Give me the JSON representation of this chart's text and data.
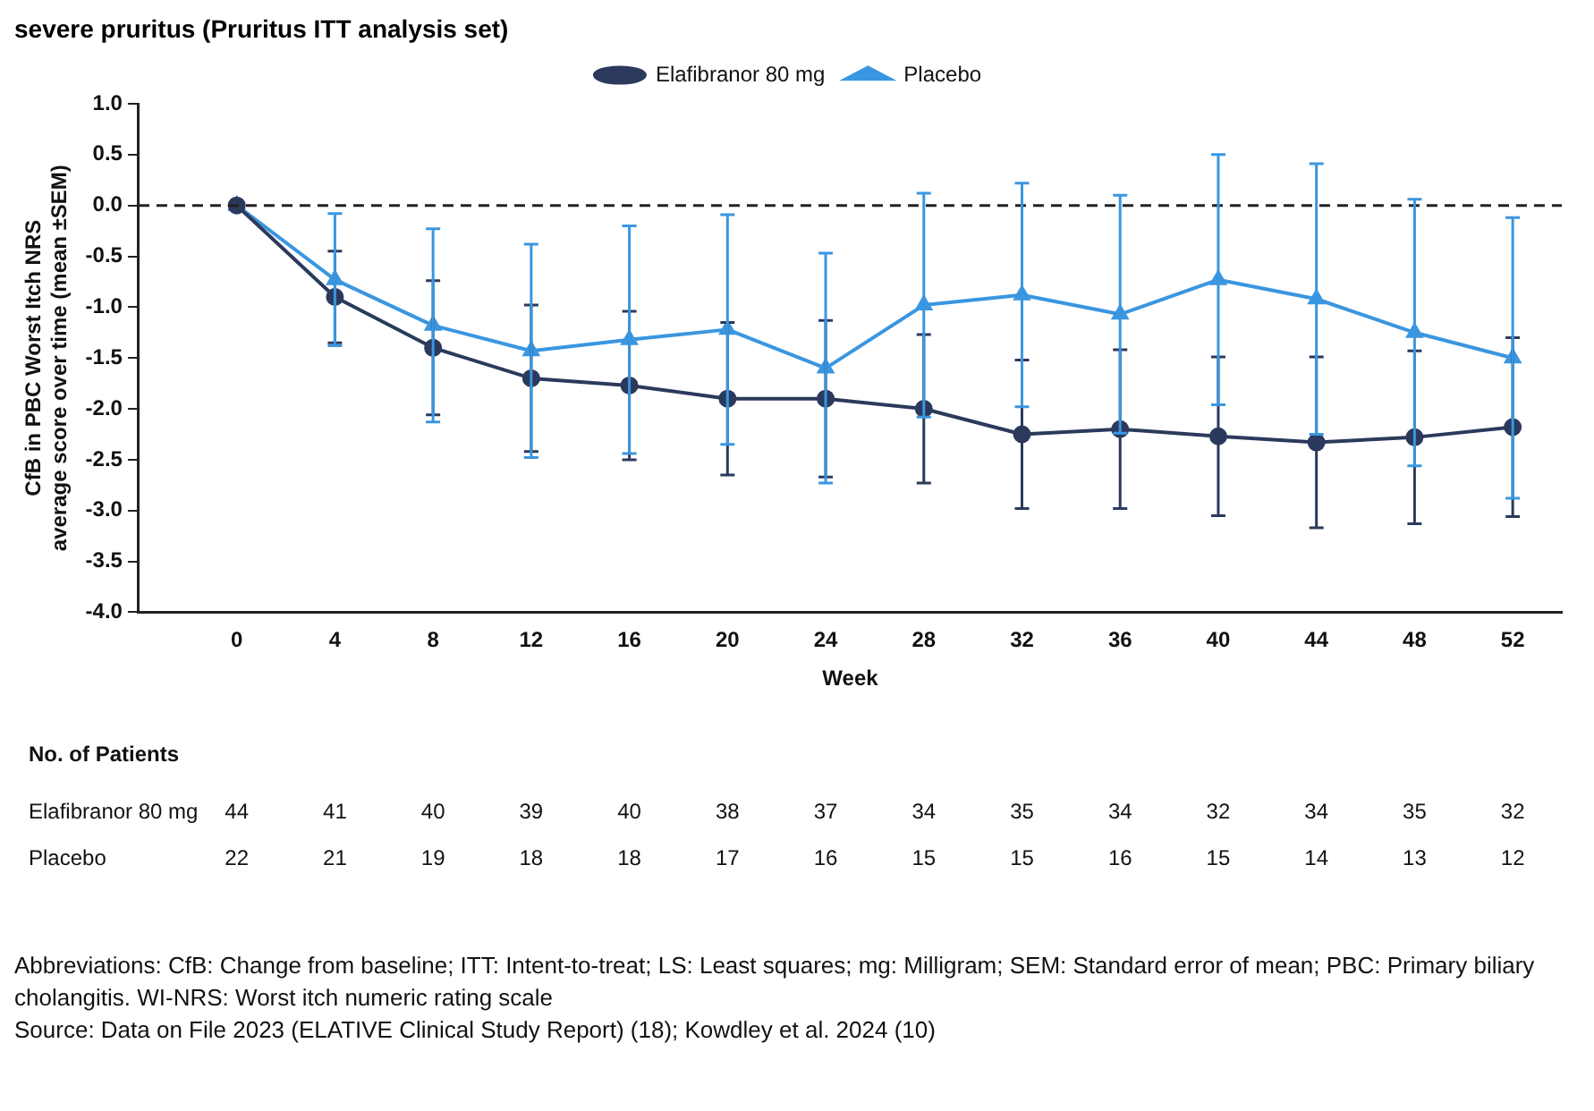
{
  "chart_data": {
    "type": "line",
    "title": "severe pruritus (Pruritus ITT analysis set)",
    "xlabel": "Week",
    "ylabel": "CfB in PBC Worst Itch NRS average score over time (mean ±SEM)",
    "x": [
      0,
      4,
      8,
      12,
      16,
      20,
      24,
      28,
      32,
      36,
      40,
      44,
      48,
      52
    ],
    "series": [
      {
        "name": "Elafibranor 80 mg",
        "color": "#2b3a5c",
        "marker": "circle",
        "values": [
          0,
          -0.9,
          -1.4,
          -1.7,
          -1.77,
          -1.9,
          -1.9,
          -2.0,
          -2.25,
          -2.2,
          -2.27,
          -2.33,
          -2.28,
          -2.18
        ],
        "errors": [
          null,
          0.45,
          0.66,
          0.72,
          0.73,
          0.75,
          0.77,
          0.73,
          0.73,
          0.78,
          0.78,
          0.84,
          0.85,
          0.88
        ]
      },
      {
        "name": "Placebo",
        "color": "#3a96e0",
        "marker": "triangle",
        "values": [
          0,
          -0.73,
          -1.18,
          -1.43,
          -1.32,
          -1.22,
          -1.6,
          -0.98,
          -0.88,
          -1.07,
          -0.73,
          -0.92,
          -1.25,
          -1.5
        ],
        "errors": [
          null,
          0.65,
          0.95,
          1.05,
          1.12,
          1.13,
          1.13,
          1.1,
          1.1,
          1.17,
          1.23,
          1.33,
          1.31,
          1.38
        ]
      }
    ],
    "xlim": [
      -4,
      54
    ],
    "xticks": [
      0,
      4,
      8,
      12,
      16,
      20,
      24,
      28,
      32,
      36,
      40,
      44,
      48,
      52
    ],
    "ylim": [
      -4,
      1
    ],
    "yticks": [
      {
        "value": -4,
        "label": "-4.0"
      },
      -3.5,
      {
        "value": -3,
        "label": "-3.0"
      },
      -2.5,
      {
        "value": -2,
        "label": "-2.0"
      },
      -1.5,
      {
        "value": -1,
        "label": "-1.0"
      },
      -0.5,
      {
        "value": 0,
        "label": "0.0"
      },
      0.5,
      {
        "value": 1,
        "label": "1.0"
      }
    ],
    "ref_lines": [
      {
        "axis": "y",
        "value": 0,
        "color": "#222222",
        "line_style": "dashed"
      }
    ],
    "grid": false,
    "legend": "top",
    "line_style": "solid",
    "annotations": [
      "No. of Patients",
      "Elafibranor 80 mg\t44\t41\t40\t39\t40\t38\t37\t34\t35\t34\t32\t34\t35\t32",
      "Placebo\t22\t21\t19\t18\t18\t17\t16\t15\t15\t16\t15\t14\t13\t12",
      "Abbreviations: CfB: Change from baseline; ITT: Intent-to-treat; LS: Least squares; mg: Milligram; SEM: Standard error of mean; PBC: Primary biliary cholangitis. WI-NRS: Worst itch numeric rating scale",
      "Source: Data on File 2023 (ELATIVE Clinical Study Report) (18); Kowdley et al. 2024 (10)"
    ]
  }
}
